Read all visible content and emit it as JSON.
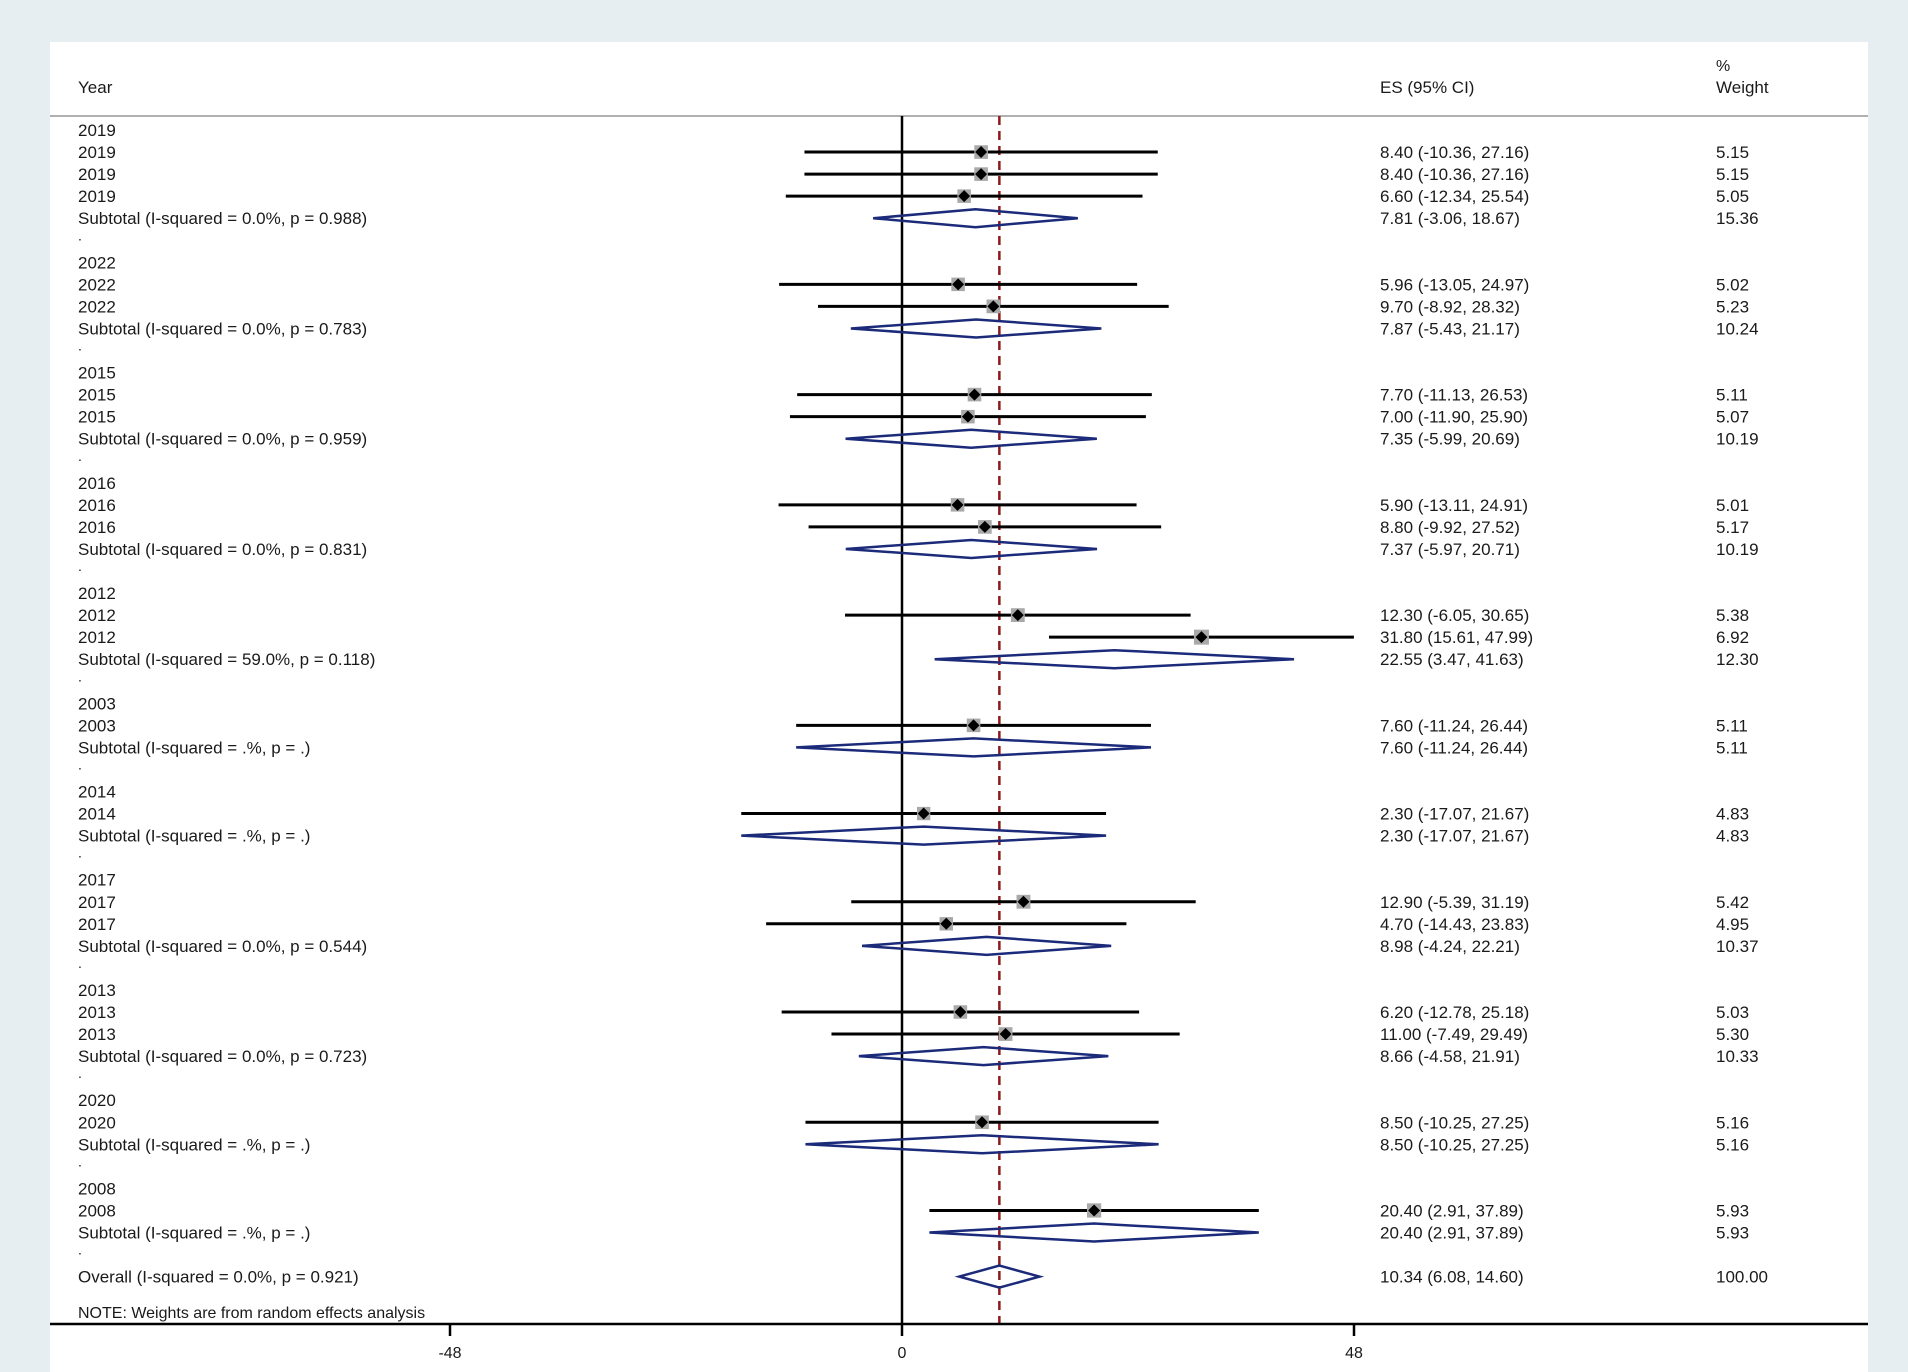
{
  "header": {
    "year_label": "Year",
    "es_label": "ES (95% CI)",
    "weight_label_top": "%",
    "weight_label_bottom": "Weight"
  },
  "note": "NOTE: Weights are from random effects analysis",
  "chart_data": {
    "type": "forest",
    "x_ticks": [
      -48,
      0,
      48
    ],
    "x_tick_labels": [
      "-48",
      "0",
      "48"
    ],
    "null_line": 0,
    "overall_line": 10.34,
    "rows": [
      {
        "kind": "header",
        "label": "2019"
      },
      {
        "kind": "study",
        "label": "2019",
        "es": 8.4,
        "lo": -10.36,
        "hi": 27.16,
        "weight": 5.15,
        "es_text": "8.40 (-10.36, 27.16)",
        "weight_text": "5.15"
      },
      {
        "kind": "study",
        "label": "2019",
        "es": 8.4,
        "lo": -10.36,
        "hi": 27.16,
        "weight": 5.15,
        "es_text": "8.40 (-10.36, 27.16)",
        "weight_text": "5.15"
      },
      {
        "kind": "study",
        "label": "2019",
        "es": 6.6,
        "lo": -12.34,
        "hi": 25.54,
        "weight": 5.05,
        "es_text": "6.60 (-12.34, 25.54)",
        "weight_text": "5.05"
      },
      {
        "kind": "subtotal",
        "label": "Subtotal  (I-squared = 0.0%, p = 0.988)",
        "es": 7.81,
        "lo": -3.06,
        "hi": 18.67,
        "es_text": "7.81 (-3.06, 18.67)",
        "weight_text": "15.36"
      },
      {
        "kind": "dot",
        "label": "."
      },
      {
        "kind": "header",
        "label": "2022"
      },
      {
        "kind": "study",
        "label": "2022",
        "es": 5.96,
        "lo": -13.05,
        "hi": 24.97,
        "weight": 5.02,
        "es_text": "5.96 (-13.05, 24.97)",
        "weight_text": "5.02"
      },
      {
        "kind": "study",
        "label": "2022",
        "es": 9.7,
        "lo": -8.92,
        "hi": 28.32,
        "weight": 5.23,
        "es_text": "9.70 (-8.92, 28.32)",
        "weight_text": "5.23"
      },
      {
        "kind": "subtotal",
        "label": "Subtotal  (I-squared = 0.0%, p = 0.783)",
        "es": 7.87,
        "lo": -5.43,
        "hi": 21.17,
        "es_text": "7.87 (-5.43, 21.17)",
        "weight_text": "10.24"
      },
      {
        "kind": "dot",
        "label": "."
      },
      {
        "kind": "header",
        "label": "2015"
      },
      {
        "kind": "study",
        "label": "2015",
        "es": 7.7,
        "lo": -11.13,
        "hi": 26.53,
        "weight": 5.11,
        "es_text": "7.70 (-11.13, 26.53)",
        "weight_text": "5.11"
      },
      {
        "kind": "study",
        "label": "2015",
        "es": 7.0,
        "lo": -11.9,
        "hi": 25.9,
        "weight": 5.07,
        "es_text": "7.00 (-11.90, 25.90)",
        "weight_text": "5.07"
      },
      {
        "kind": "subtotal",
        "label": "Subtotal  (I-squared = 0.0%, p = 0.959)",
        "es": 7.35,
        "lo": -5.99,
        "hi": 20.69,
        "es_text": "7.35 (-5.99, 20.69)",
        "weight_text": "10.19"
      },
      {
        "kind": "dot",
        "label": "."
      },
      {
        "kind": "header",
        "label": "2016"
      },
      {
        "kind": "study",
        "label": "2016",
        "es": 5.9,
        "lo": -13.11,
        "hi": 24.91,
        "weight": 5.01,
        "es_text": "5.90 (-13.11, 24.91)",
        "weight_text": "5.01"
      },
      {
        "kind": "study",
        "label": "2016",
        "es": 8.8,
        "lo": -9.92,
        "hi": 27.52,
        "weight": 5.17,
        "es_text": "8.80 (-9.92, 27.52)",
        "weight_text": "5.17"
      },
      {
        "kind": "subtotal",
        "label": "Subtotal  (I-squared = 0.0%, p = 0.831)",
        "es": 7.37,
        "lo": -5.97,
        "hi": 20.71,
        "es_text": "7.37 (-5.97, 20.71)",
        "weight_text": "10.19"
      },
      {
        "kind": "dot",
        "label": "."
      },
      {
        "kind": "header",
        "label": "2012"
      },
      {
        "kind": "study",
        "label": "2012",
        "es": 12.3,
        "lo": -6.05,
        "hi": 30.65,
        "weight": 5.38,
        "es_text": "12.30 (-6.05, 30.65)",
        "weight_text": "5.38"
      },
      {
        "kind": "study",
        "label": "2012",
        "es": 31.8,
        "lo": 15.61,
        "hi": 47.99,
        "weight": 6.92,
        "es_text": "31.80 (15.61, 47.99)",
        "weight_text": "6.92"
      },
      {
        "kind": "subtotal",
        "label": "Subtotal  (I-squared = 59.0%, p = 0.118)",
        "es": 22.55,
        "lo": 3.47,
        "hi": 41.63,
        "es_text": "22.55 (3.47, 41.63)",
        "weight_text": "12.30"
      },
      {
        "kind": "dot",
        "label": "."
      },
      {
        "kind": "header",
        "label": "2003"
      },
      {
        "kind": "study",
        "label": "2003",
        "es": 7.6,
        "lo": -11.24,
        "hi": 26.44,
        "weight": 5.11,
        "es_text": "7.60 (-11.24, 26.44)",
        "weight_text": "5.11"
      },
      {
        "kind": "subtotal",
        "label": "Subtotal  (I-squared = .%, p = .)",
        "es": 7.6,
        "lo": -11.24,
        "hi": 26.44,
        "es_text": "7.60 (-11.24, 26.44)",
        "weight_text": "5.11"
      },
      {
        "kind": "dot",
        "label": "."
      },
      {
        "kind": "header",
        "label": "2014"
      },
      {
        "kind": "study",
        "label": "2014",
        "es": 2.3,
        "lo": -17.07,
        "hi": 21.67,
        "weight": 4.83,
        "es_text": "2.30 (-17.07, 21.67)",
        "weight_text": "4.83"
      },
      {
        "kind": "subtotal",
        "label": "Subtotal  (I-squared = .%, p = .)",
        "es": 2.3,
        "lo": -17.07,
        "hi": 21.67,
        "es_text": "2.30 (-17.07, 21.67)",
        "weight_text": "4.83"
      },
      {
        "kind": "dot",
        "label": "."
      },
      {
        "kind": "header",
        "label": "2017"
      },
      {
        "kind": "study",
        "label": "2017",
        "es": 12.9,
        "lo": -5.39,
        "hi": 31.19,
        "weight": 5.42,
        "es_text": "12.90 (-5.39, 31.19)",
        "weight_text": "5.42"
      },
      {
        "kind": "study",
        "label": "2017",
        "es": 4.7,
        "lo": -14.43,
        "hi": 23.83,
        "weight": 4.95,
        "es_text": "4.70 (-14.43, 23.83)",
        "weight_text": "4.95"
      },
      {
        "kind": "subtotal",
        "label": "Subtotal  (I-squared = 0.0%, p = 0.544)",
        "es": 8.98,
        "lo": -4.24,
        "hi": 22.21,
        "es_text": "8.98 (-4.24, 22.21)",
        "weight_text": "10.37"
      },
      {
        "kind": "dot",
        "label": "."
      },
      {
        "kind": "header",
        "label": "2013"
      },
      {
        "kind": "study",
        "label": "2013",
        "es": 6.2,
        "lo": -12.78,
        "hi": 25.18,
        "weight": 5.03,
        "es_text": "6.20 (-12.78, 25.18)",
        "weight_text": "5.03"
      },
      {
        "kind": "study",
        "label": "2013",
        "es": 11.0,
        "lo": -7.49,
        "hi": 29.49,
        "weight": 5.3,
        "es_text": "11.00 (-7.49, 29.49)",
        "weight_text": "5.30"
      },
      {
        "kind": "subtotal",
        "label": "Subtotal  (I-squared = 0.0%, p = 0.723)",
        "es": 8.66,
        "lo": -4.58,
        "hi": 21.91,
        "es_text": "8.66 (-4.58, 21.91)",
        "weight_text": "10.33"
      },
      {
        "kind": "dot",
        "label": "."
      },
      {
        "kind": "header",
        "label": "2020"
      },
      {
        "kind": "study",
        "label": "2020",
        "es": 8.5,
        "lo": -10.25,
        "hi": 27.25,
        "weight": 5.16,
        "es_text": "8.50 (-10.25, 27.25)",
        "weight_text": "5.16"
      },
      {
        "kind": "subtotal",
        "label": "Subtotal  (I-squared = .%, p = .)",
        "es": 8.5,
        "lo": -10.25,
        "hi": 27.25,
        "es_text": "8.50 (-10.25, 27.25)",
        "weight_text": "5.16"
      },
      {
        "kind": "dot",
        "label": "."
      },
      {
        "kind": "header",
        "label": "2008"
      },
      {
        "kind": "study",
        "label": "2008",
        "es": 20.4,
        "lo": 2.91,
        "hi": 37.89,
        "weight": 5.93,
        "es_text": "20.40 (2.91, 37.89)",
        "weight_text": "5.93"
      },
      {
        "kind": "subtotal",
        "label": "Subtotal  (I-squared = .%, p = .)",
        "es": 20.4,
        "lo": 2.91,
        "hi": 37.89,
        "es_text": "20.40 (2.91, 37.89)",
        "weight_text": "5.93"
      },
      {
        "kind": "dot",
        "label": "."
      },
      {
        "kind": "overall",
        "label": "Overall  (I-squared = 0.0%, p = 0.921)",
        "es": 10.34,
        "lo": 6.08,
        "hi": 14.6,
        "es_text": "10.34 (6.08, 14.60)",
        "weight_text": "100.00"
      }
    ]
  }
}
